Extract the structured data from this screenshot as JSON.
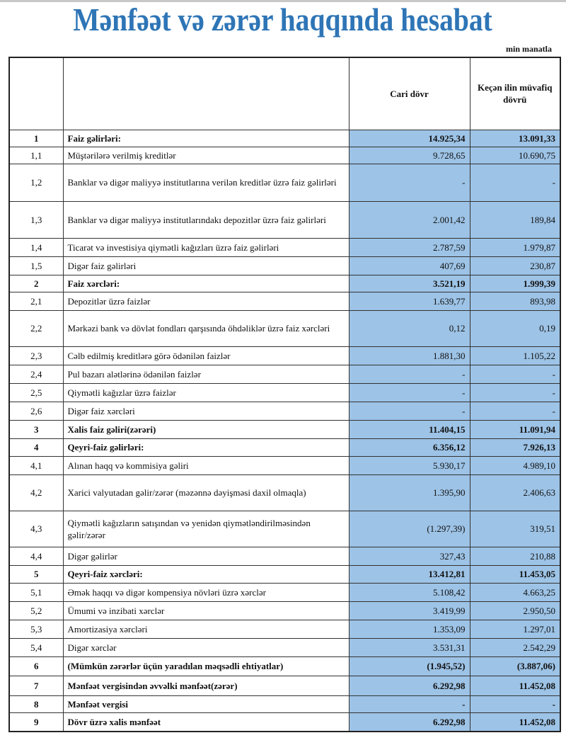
{
  "title": "Mənfəət və zərər haqqında hesabat",
  "unit": "min manatla",
  "header": {
    "num": "",
    "desc": "",
    "current": "Cari dövr",
    "previous": "Keçən ilin müvafiq dövrü"
  },
  "colors": {
    "title": "#2e75b6",
    "value_fill": "#9dc3e6"
  },
  "rows": [
    {
      "num": "1",
      "desc": "Faiz gəlirləri:",
      "current": "14.925,34",
      "previous": "13.091,33",
      "bold": true
    },
    {
      "num": "1,1",
      "desc": "Müştərilərə verilmiş kreditlər",
      "current": "9.728,65",
      "previous": "10.690,75"
    },
    {
      "num": "1,2",
      "desc": "Banklar və digər maliyyə institutlarına verilən kreditlər üzrə faiz gəlirləri",
      "current": "-",
      "previous": "-",
      "tall": true
    },
    {
      "num": "1,3",
      "desc": "Banklar və digər maliyyə institutlarındakı depozitlər üzrə faiz gəlirləri",
      "current": "2.001,42",
      "previous": "189,84",
      "tall": true
    },
    {
      "num": "1,4",
      "desc": "Ticarət və investisiya qiymətli kağızları üzrə faiz gəlirləri",
      "current": "2.787,59",
      "previous": "1.979,87"
    },
    {
      "num": "1,5",
      "desc": "Digər faiz gəlirləri",
      "current": "407,69",
      "previous": "230,87"
    },
    {
      "num": "2",
      "desc": "Faiz xərcləri:",
      "current": "3.521,19",
      "previous": "1.999,39",
      "bold": true
    },
    {
      "num": "2,1",
      "desc": "Depozitlər üzrə faizlər",
      "current": "1.639,77",
      "previous": "893,98"
    },
    {
      "num": "2,2",
      "desc": "Mərkəzi bank və dövlət fondları qarşısında öhdəliklər üzrə faiz xərcləri",
      "current": "0,12",
      "previous": "0,19",
      "tall": true
    },
    {
      "num": "2,3",
      "desc": "Cəlb edilmiş kreditlərə görə ödənilən faizlər",
      "current": "1.881,30",
      "previous": "1.105,22"
    },
    {
      "num": "2,4",
      "desc": "Pul bazarı alətlərinə ödənilən faizlər",
      "current": "-",
      "previous": "-"
    },
    {
      "num": "2,5",
      "desc": "Qiymətli kağızlar üzrə faizlər",
      "current": "-",
      "previous": "-"
    },
    {
      "num": "2,6",
      "desc": "Digər faiz xərcləri",
      "current": "-",
      "previous": "-"
    },
    {
      "num": "3",
      "desc": "Xalis faiz gəliri(zərəri)",
      "current": "11.404,15",
      "previous": "11.091,94",
      "bold": true
    },
    {
      "num": "4",
      "desc": "Qeyri-faiz gəlirləri:",
      "current": "6.356,12",
      "previous": "7.926,13",
      "bold": true
    },
    {
      "num": "4,1",
      "desc": "Alınan haqq və kommisiya gəliri",
      "current": "5.930,17",
      "previous": "4.989,10"
    },
    {
      "num": "4,2",
      "desc": "Xarici valyutadan gəlir/zərər (məzənnə dəyişməsi daxil olmaqla)",
      "current": "1.395,90",
      "previous": "2.406,63",
      "tall": true
    },
    {
      "num": "4,3",
      "desc": "Qiymətli kağızların satışından və yenidən qiymətləndirilməsindən gəlir/zərər",
      "current": "(1.297,39)",
      "previous": "319,51",
      "tall": true
    },
    {
      "num": "4,4",
      "desc": "Digər gəlirlər",
      "current": "327,43",
      "previous": "210,88"
    },
    {
      "num": "5",
      "desc": "Qeyri-faiz xərcləri:",
      "current": "13.412,81",
      "previous": "11.453,05",
      "bold": true
    },
    {
      "num": "5,1",
      "desc": "Əmək haqqı və digər kompensiya növləri üzrə xərclər",
      "current": "5.108,42",
      "previous": "4.663,25"
    },
    {
      "num": "5,2",
      "desc": "Ümumi və inzibati xərclər",
      "current": "3.419,99",
      "previous": "2.950,50"
    },
    {
      "num": "5,3",
      "desc": "Amortizasiya xərcləri",
      "current": "1.353,09",
      "previous": "1.297,01"
    },
    {
      "num": "5,4",
      "desc": "Digər xərclər",
      "current": "3.531,31",
      "previous": "2.542,29"
    },
    {
      "num": "6",
      "desc": "(Mümkün zərərlər üçün yaradılan məqsədli ehtiyatlar)",
      "current": "(1.945,52)",
      "previous": "(3.887,06)",
      "bold": true
    },
    {
      "num": "7",
      "desc": "Mənfəət vergisindən əvvəlki mənfəət(zərər)",
      "current": "6.292,98",
      "previous": "11.452,08",
      "bold": true
    },
    {
      "num": "8",
      "desc": "Mənfəət vergisi",
      "current": "-",
      "previous": "-",
      "bold": true
    },
    {
      "num": "9",
      "desc": "Dövr üzrə xalis mənfəət",
      "current": "6.292,98",
      "previous": "11.452,08",
      "bold": true
    }
  ]
}
